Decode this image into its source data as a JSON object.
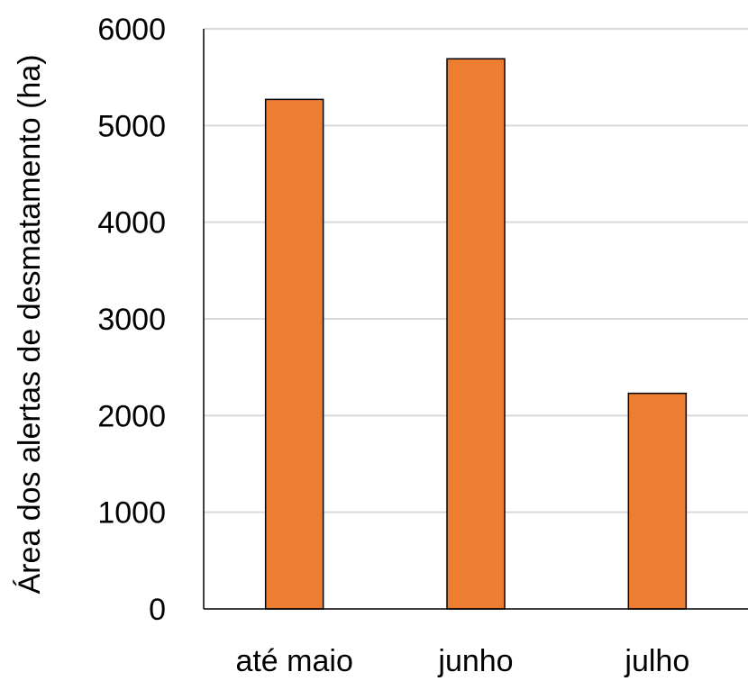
{
  "chart_data": {
    "type": "bar",
    "title": "",
    "xlabel": "",
    "ylabel": "Área dos alertas de desmatamento (ha)",
    "categories": [
      "até maio",
      "junho",
      "julho"
    ],
    "values": [
      5270,
      5690,
      2230
    ],
    "ylim": [
      0,
      6000
    ],
    "yticks": [
      0,
      1000,
      2000,
      3000,
      4000,
      5000,
      6000
    ],
    "ytick_labels": [
      "0",
      "1000",
      "2000",
      "3000",
      "4000",
      "5000",
      "6000"
    ],
    "grid": "horizontal",
    "legend": "none",
    "colors": {
      "bar": "#ED7D31",
      "bar_edge": "#000000",
      "grid": "#D9D9D9",
      "axis": "#000000"
    }
  }
}
